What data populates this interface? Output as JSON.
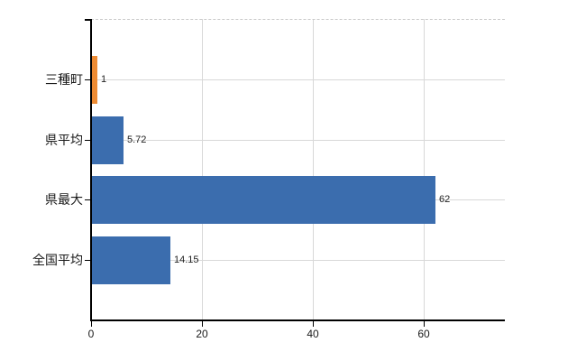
{
  "chart_data": {
    "type": "bar",
    "orientation": "horizontal",
    "categories": [
      "三種町",
      "県平均",
      "県最大",
      "全国平均"
    ],
    "values": [
      1,
      5.72,
      62,
      14.15
    ],
    "value_labels": [
      "1",
      "5.72",
      "62",
      "14.15"
    ],
    "bar_colors": [
      "#ED8B33",
      "#3B6DAE",
      "#3B6DAE",
      "#3B6DAE"
    ],
    "x_ticks": [
      0,
      20,
      40,
      60
    ],
    "x_tick_labels": [
      "0",
      "20",
      "40",
      "60"
    ],
    "xlim": [
      0,
      74.6
    ],
    "grid": true,
    "legend": "none"
  },
  "colors": {
    "bar_blue": "#3B6DAE",
    "bar_orange": "#ED8B33",
    "gridline": "#D8D8D8",
    "top_border": "#C9C9C9",
    "axis": "#000000",
    "text": "#1A1A1A",
    "background": "#FFFFFF"
  }
}
